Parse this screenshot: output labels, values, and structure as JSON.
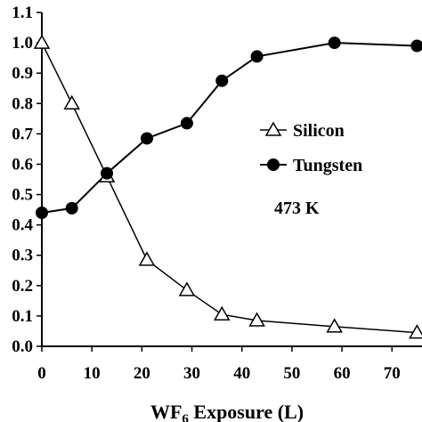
{
  "chart_data": {
    "type": "line",
    "xlabel": "WF6 Exposure (L)",
    "xlabel_parts": {
      "main": "WF",
      "sub": "6",
      "rest": " Exposure (L)"
    },
    "ylabel": "",
    "xlim": [
      0,
      76
    ],
    "ylim": [
      0,
      1.1
    ],
    "xticks": [
      "0",
      "10",
      "20",
      "30",
      "40",
      "50",
      "60",
      "70"
    ],
    "yticks": [
      "0.0",
      "0.1",
      "0.2",
      "0.3",
      "0.4",
      "0.5",
      "0.6",
      "0.7",
      "0.8",
      "0.9",
      "1.0",
      "1.1"
    ],
    "legend_position": "center-right",
    "annotation": "473 K",
    "series": [
      {
        "name": "Silicon",
        "marker": "open-triangle",
        "x": [
          0,
          6,
          13,
          21,
          29,
          36,
          43,
          58.5,
          75
        ],
        "y": [
          1.0,
          0.8,
          0.56,
          0.285,
          0.185,
          0.105,
          0.085,
          0.065,
          0.045
        ]
      },
      {
        "name": "Tungsten",
        "marker": "filled-circle",
        "x": [
          0,
          6,
          13,
          21,
          29,
          36,
          43,
          58.5,
          75
        ],
        "y": [
          0.44,
          0.455,
          0.57,
          0.685,
          0.735,
          0.875,
          0.955,
          1.0,
          0.99
        ]
      }
    ]
  }
}
